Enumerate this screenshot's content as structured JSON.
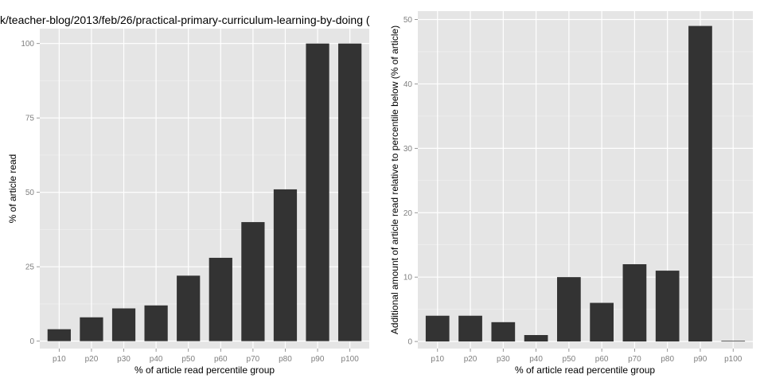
{
  "figure": {
    "title": "k/teacher-blog/2013/feb/26/practical-primary-curriculum-learning-by-doing ("
  },
  "colors": {
    "panel_background": "#e5e5e5",
    "grid_major": "#ffffff",
    "grid_minor": "#f2f2f2",
    "bar_fill": "#333333",
    "tick_text": "#7f7f7f"
  },
  "chart_data": [
    {
      "type": "bar",
      "title": "k/teacher-blog/2013/feb/26/practical-primary-curriculum-learning-by-doing (",
      "xlabel": "% of article read percentile group",
      "ylabel": "% of article read",
      "categories": [
        "p10",
        "p20",
        "p30",
        "p40",
        "p50",
        "p60",
        "p70",
        "p80",
        "p90",
        "p100"
      ],
      "values": [
        4,
        8,
        11,
        12,
        22,
        28,
        40,
        51,
        100,
        100
      ],
      "ylim": [
        -2.5,
        105
      ],
      "yticks": [
        0,
        25,
        50,
        75,
        100
      ],
      "grid": true
    },
    {
      "type": "bar",
      "xlabel": "% of article read percentile group",
      "ylabel": "Additional amount of article read relative to percentile below (% of article)",
      "categories": [
        "p10",
        "p20",
        "p30",
        "p40",
        "p50",
        "p60",
        "p70",
        "p80",
        "p90",
        "p100"
      ],
      "values": [
        4,
        4,
        3,
        1,
        10,
        6,
        12,
        11,
        49,
        0.1
      ],
      "ylim": [
        -1.1,
        51.3
      ],
      "yticks": [
        0,
        10,
        20,
        30,
        40,
        50
      ],
      "grid": true
    }
  ]
}
